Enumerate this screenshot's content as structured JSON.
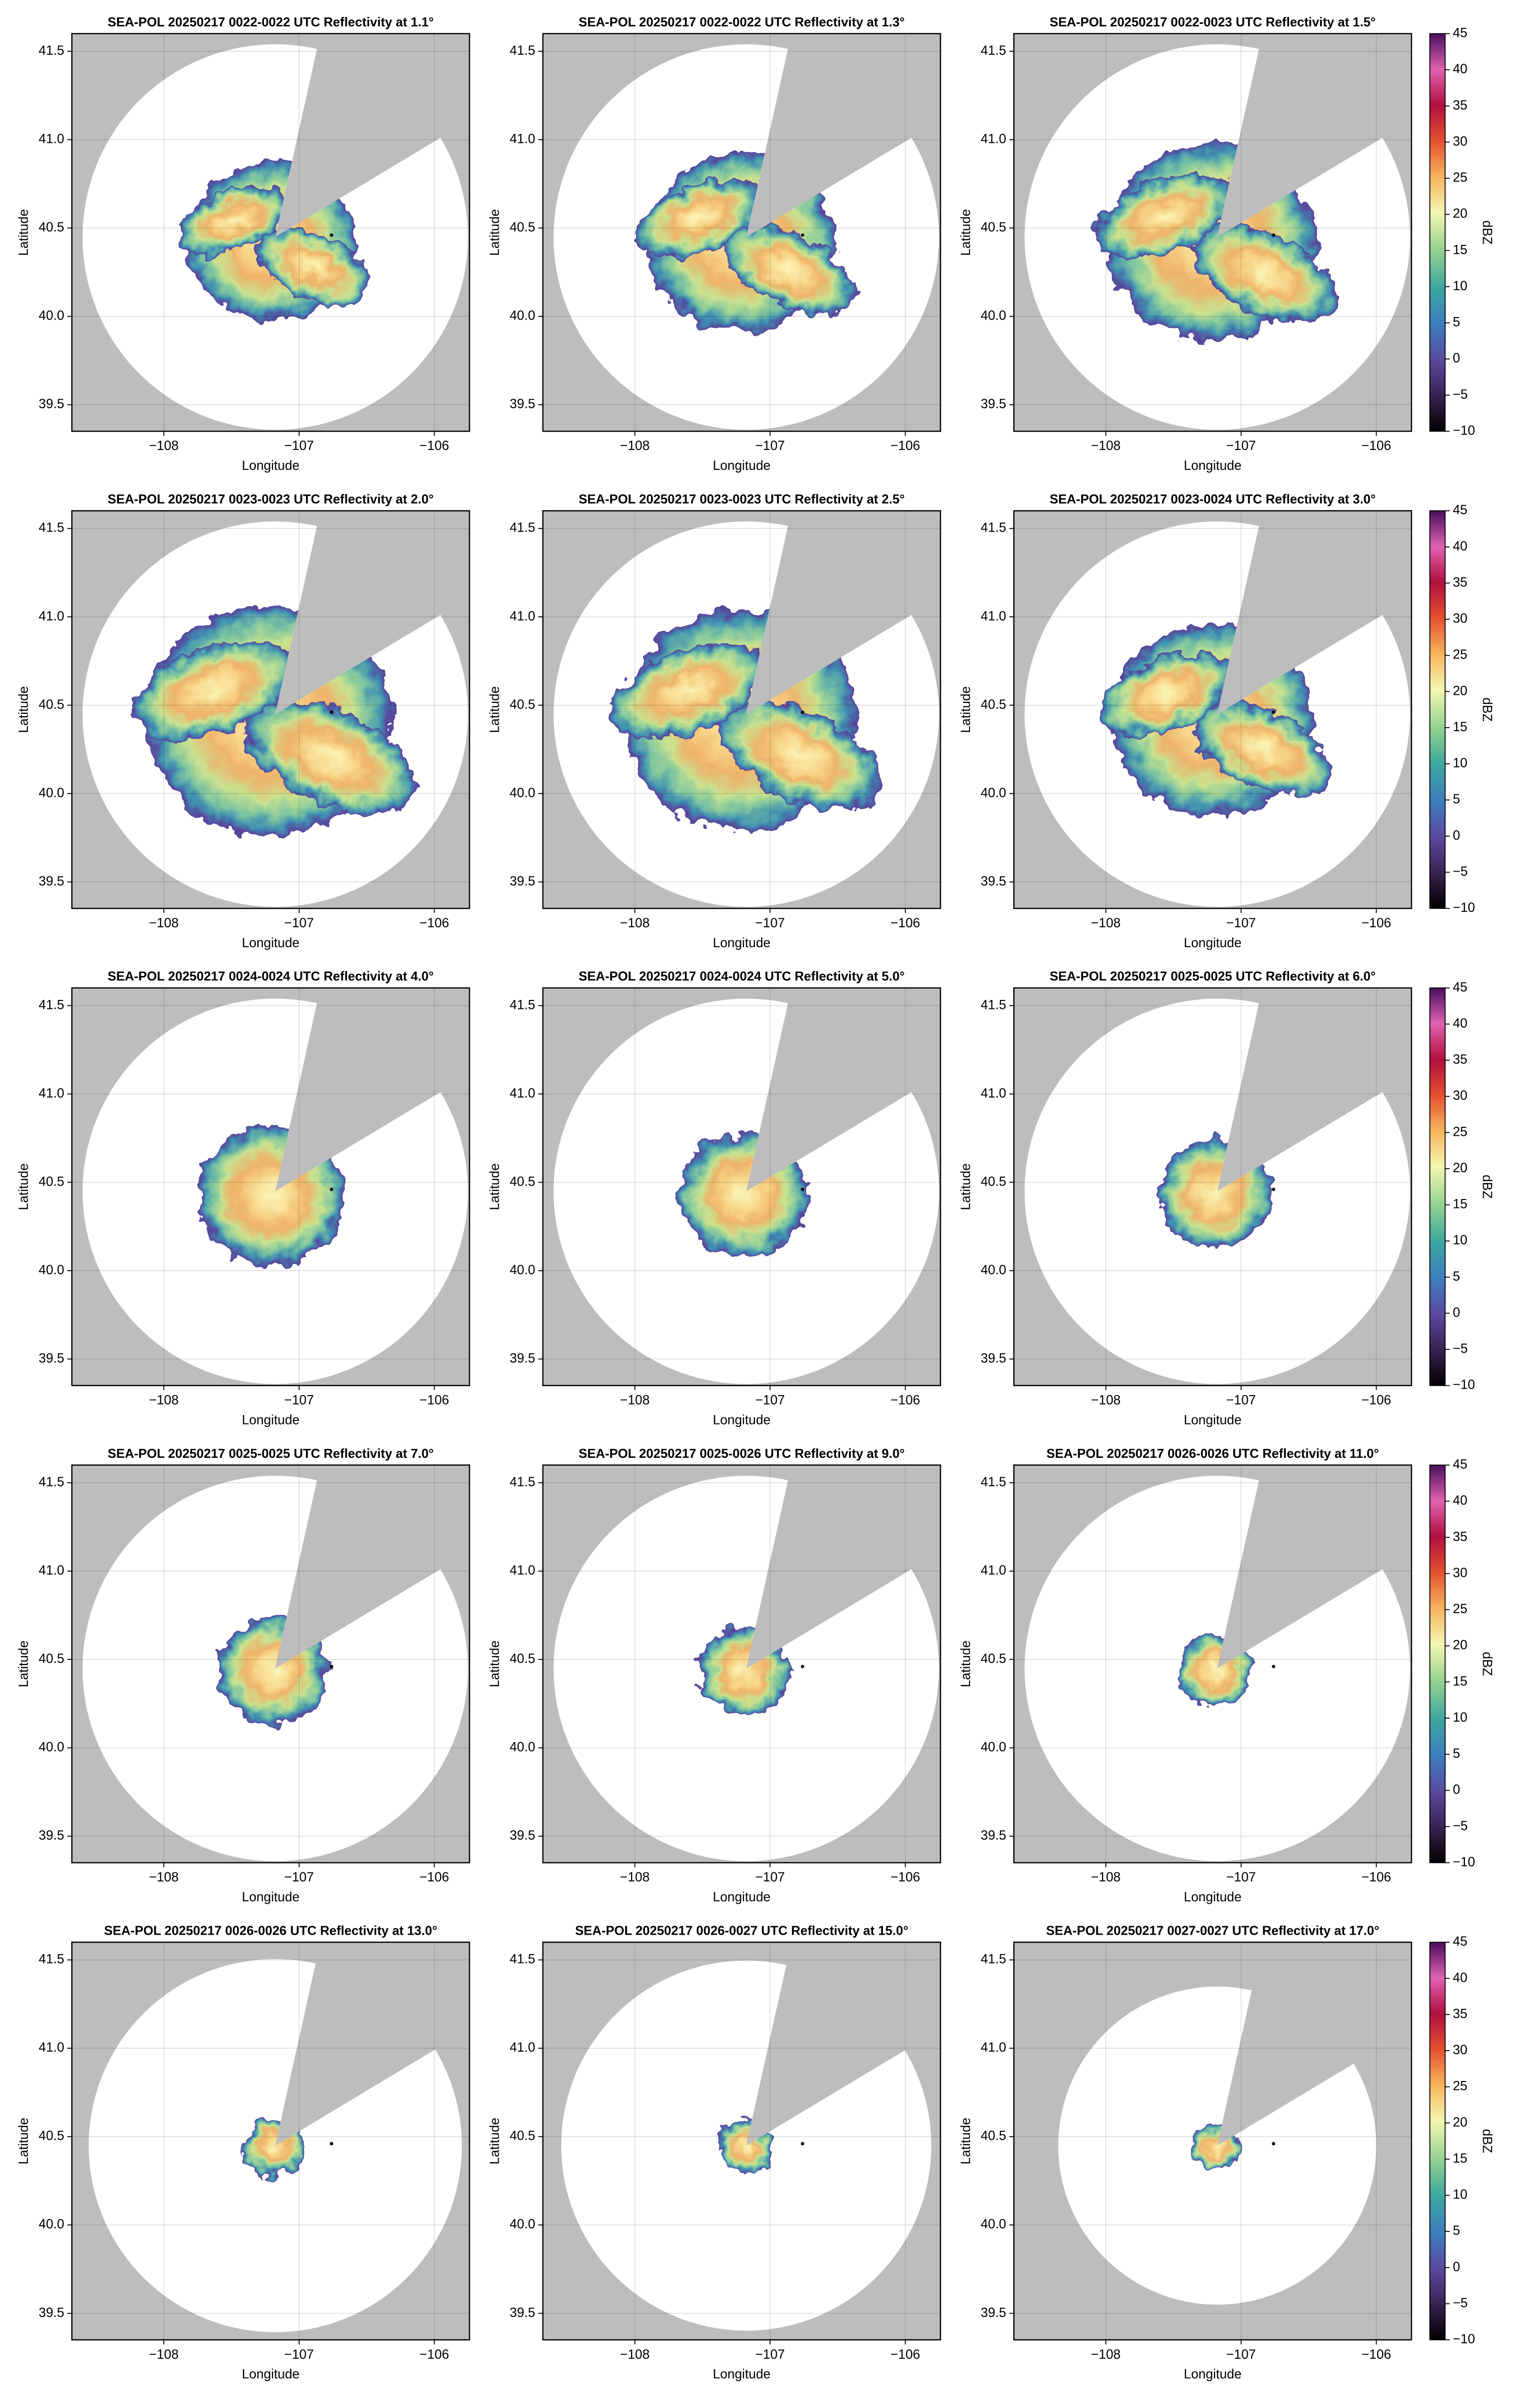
{
  "chart_data": [
    {
      "type": "ppi",
      "title": "SEA-POL 20250217 0022-0022 UTC Reflectivity at 1.1°"
    },
    {
      "type": "ppi",
      "title": "SEA-POL 20250217 0022-0022 UTC Reflectivity at 1.3°"
    },
    {
      "type": "ppi",
      "title": "SEA-POL 20250217 0022-0023 UTC Reflectivity at 1.5°"
    },
    {
      "type": "ppi",
      "title": "SEA-POL 20250217 0023-0023 UTC Reflectivity at 2.0°"
    },
    {
      "type": "ppi",
      "title": "SEA-POL 20250217 0023-0023 UTC Reflectivity at 2.5°"
    },
    {
      "type": "ppi",
      "title": "SEA-POL 20250217 0023-0024 UTC Reflectivity at 3.0°"
    },
    {
      "type": "ppi",
      "title": "SEA-POL 20250217 0024-0024 UTC Reflectivity at 4.0°"
    },
    {
      "type": "ppi",
      "title": "SEA-POL 20250217 0024-0024 UTC Reflectivity at 5.0°"
    },
    {
      "type": "ppi",
      "title": "SEA-POL 20250217 0025-0025 UTC Reflectivity at 6.0°"
    },
    {
      "type": "ppi",
      "title": "SEA-POL 20250217 0025-0025 UTC Reflectivity at 7.0°"
    },
    {
      "type": "ppi",
      "title": "SEA-POL 20250217 0025-0026 UTC Reflectivity at 9.0°"
    },
    {
      "type": "ppi",
      "title": "SEA-POL 20250217 0026-0026 UTC Reflectivity at 11.0°"
    },
    {
      "type": "ppi",
      "title": "SEA-POL 20250217 0026-0026 UTC Reflectivity at 13.0°"
    },
    {
      "type": "ppi",
      "title": "SEA-POL 20250217 0026-0027 UTC Reflectivity at 15.0°"
    },
    {
      "type": "ppi",
      "title": "SEA-POL 20250217 0027-0027 UTC Reflectivity at 17.0°"
    }
  ],
  "axes": {
    "xlabel": "Longitude",
    "ylabel": "Latitude",
    "xlim": [
      -108.68,
      -105.74
    ],
    "ylim": [
      39.35,
      41.6
    ],
    "xticks": [
      {
        "value": -108,
        "label": "−108"
      },
      {
        "value": -107,
        "label": "−107"
      },
      {
        "value": -106,
        "label": "−106"
      }
    ],
    "yticks": [
      39.5,
      {
        "value": 40,
        "label": "40.0"
      },
      40.5,
      {
        "value": 41,
        "label": "41.0"
      },
      41.5
    ],
    "grid": true
  },
  "site": {
    "x": -106.76,
    "y": 40.46
  },
  "colorbar": {
    "label": "dBZ",
    "lim": [
      -10,
      45
    ],
    "ticks": [
      {
        "value": -10,
        "label": "−10"
      },
      {
        "value": -5,
        "label": "−5"
      },
      0,
      5,
      10,
      15,
      20,
      25,
      30,
      35,
      40,
      45
    ]
  }
}
